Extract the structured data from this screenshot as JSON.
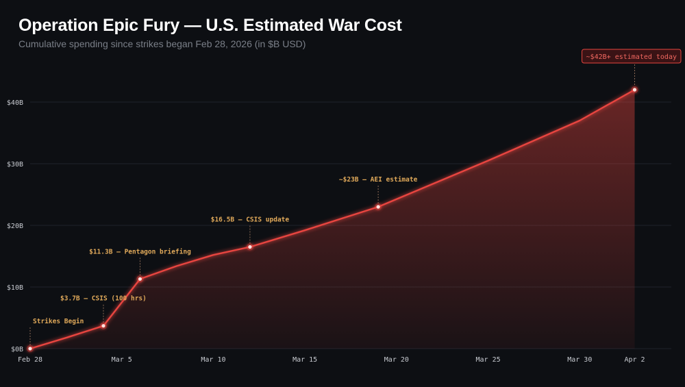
{
  "title": "Operation Epic Fury — U.S. Estimated War Cost",
  "subtitle": "Cumulative spending since strikes began Feb 28, 2026 (in $B USD)",
  "colors": {
    "background": "#0d0f13",
    "line": "#e8453f",
    "annotation": "#e0a95a",
    "axis_text": "#c9ccd2",
    "grid": "#1f232b",
    "badge_text": "#f06860",
    "badge_fill": "#3a1315"
  },
  "chart_data": {
    "type": "area",
    "x_axis": {
      "type": "date",
      "range": [
        "2026-02-28",
        "2026-04-04"
      ],
      "ticks": [
        {
          "date": "2026-02-28",
          "label": "Feb 28"
        },
        {
          "date": "2026-03-05",
          "label": "Mar 5"
        },
        {
          "date": "2026-03-10",
          "label": "Mar 10"
        },
        {
          "date": "2026-03-15",
          "label": "Mar 15"
        },
        {
          "date": "2026-03-20",
          "label": "Mar 20"
        },
        {
          "date": "2026-03-25",
          "label": "Mar 25"
        },
        {
          "date": "2026-03-30",
          "label": "Mar 30"
        },
        {
          "date": "2026-04-02",
          "label": "Apr 2"
        }
      ]
    },
    "y_axis": {
      "range": [
        0,
        46
      ],
      "ticks": [
        {
          "value": 0,
          "label": "$0B"
        },
        {
          "value": 10,
          "label": "$10B"
        },
        {
          "value": 20,
          "label": "$20B"
        },
        {
          "value": 30,
          "label": "$30B"
        },
        {
          "value": 40,
          "label": "$40B"
        }
      ]
    },
    "grid": true,
    "series": [
      {
        "points": [
          {
            "x": "2026-02-28",
            "y": 0
          },
          {
            "x": "2026-03-02",
            "y": 1.8
          },
          {
            "x": "2026-03-04",
            "y": 3.7
          },
          {
            "x": "2026-03-06",
            "y": 11.3
          },
          {
            "x": "2026-03-08",
            "y": 13.4
          },
          {
            "x": "2026-03-10",
            "y": 15.2
          },
          {
            "x": "2026-03-12",
            "y": 16.5
          },
          {
            "x": "2026-03-15",
            "y": 19.2
          },
          {
            "x": "2026-03-19",
            "y": 23
          },
          {
            "x": "2026-03-25",
            "y": 30.5
          },
          {
            "x": "2026-03-30",
            "y": 37
          },
          {
            "x": "2026-04-02",
            "y": 42
          }
        ]
      }
    ],
    "annotations": [
      {
        "x": "2026-02-28",
        "y": 0,
        "label": "Strikes Begin"
      },
      {
        "x": "2026-03-04",
        "y": 3.7,
        "label": "$3.7B — CSIS (100 hrs)"
      },
      {
        "x": "2026-03-06",
        "y": 11.3,
        "label": "$11.3B — Pentagon briefing"
      },
      {
        "x": "2026-03-12",
        "y": 16.5,
        "label": "$16.5B — CSIS update"
      },
      {
        "x": "2026-03-19",
        "y": 23,
        "label": "~$23B — AEI estimate"
      },
      {
        "x": "2026-04-02",
        "y": 42,
        "label": "~$42B+ estimated today",
        "highlight": true
      }
    ]
  }
}
